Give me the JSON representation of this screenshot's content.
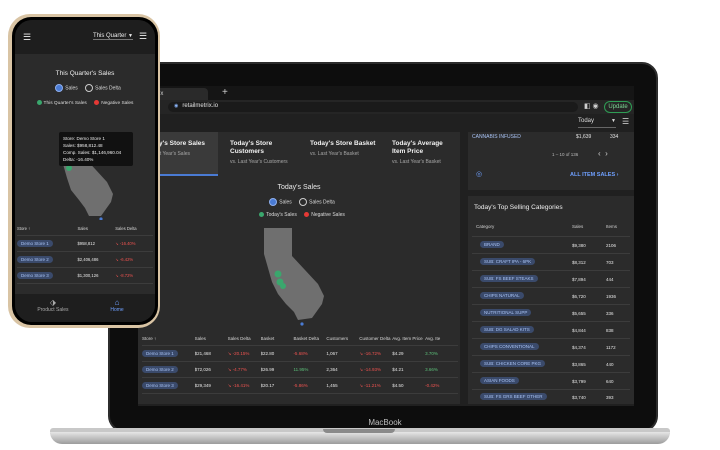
{
  "laptop": {
    "device_label": "MacBook",
    "browser": {
      "tab_label": "etrix",
      "new_tab": "+",
      "url": "retailmetrix.io",
      "update_label": "Update"
    },
    "period_select": "Today",
    "kpis": [
      {
        "title": "Today's Store Sales",
        "sub": "vs. Last Year's Sales"
      },
      {
        "title": "Today's Store Customers",
        "sub": "vs. Last Year's Customers"
      },
      {
        "title": "Today's Store Basket",
        "sub": "vs. Last Year's Basket"
      },
      {
        "title": "Today's Average Item Price",
        "sub": "vs. Last Year's Basket"
      }
    ],
    "chart": {
      "title": "Today's Sales",
      "radio_sales": "Sales",
      "radio_delta": "Sales Delta",
      "legend_pos": "Today's Sales",
      "legend_neg": "Negative Sales"
    },
    "store_table": {
      "headers": [
        "Store ↑",
        "Sales",
        "Sales Delta",
        "Basket",
        "Basket Delta",
        "Customers",
        "Customer Delta",
        "Avg. Item Price",
        "Avg. Ite"
      ],
      "rows": [
        [
          "Demo Store 1",
          "$21,468",
          "↘ -20.15%",
          "$22.80",
          "-5.68%",
          "1,067",
          "↘ -16.72%",
          "$4.29",
          "3.70%"
        ],
        [
          "Demo Store 2",
          "$72,026",
          "↘ -4.77%",
          "$26.99",
          "11.95%",
          "2,364",
          "↘ -14.93%",
          "$4.21",
          "3.66%"
        ],
        [
          "Demo Store 3",
          "$29,349",
          "↘ -16.41%",
          "$20.17",
          "-5.86%",
          "1,455",
          "↘ -11.21%",
          "$4.50",
          "-0.42%"
        ]
      ]
    },
    "top_right": {
      "row_label": "CANNABIS INFUSED",
      "row_sales": "$1,639",
      "row_items": "334",
      "pager": "1 – 10 of 136",
      "all_items_label": "ALL ITEM SALES ›"
    },
    "categories": {
      "title": "Today's Top Selling Categories",
      "headers": [
        "Category",
        "Sales",
        "Items"
      ],
      "rows": [
        {
          "name": "BRAND",
          "sales": "$9,380",
          "items": "2106"
        },
        {
          "name": "SUB: CRAFT IPA - 6PK",
          "sales": "$8,312",
          "items": "703"
        },
        {
          "name": "SUB: FS BEEF STEAKS",
          "sales": "$7,894",
          "items": "444"
        },
        {
          "name": "CHIPS NATURAL",
          "sales": "$6,720",
          "items": "1936"
        },
        {
          "name": "NUTRITIONAL SUPP",
          "sales": "$5,655",
          "items": "336"
        },
        {
          "name": "SUB: DG SALAD KITS",
          "sales": "$4,844",
          "items": "838"
        },
        {
          "name": "CHIPS CONVENTIONAL",
          "sales": "$4,374",
          "items": "1172"
        },
        {
          "name": "SUB: CHICKEN CORE PKG",
          "sales": "$3,865",
          "items": "440"
        },
        {
          "name": "ASIAN FOODS",
          "sales": "$3,799",
          "items": "640"
        },
        {
          "name": "SUB: FS GRS BEEF OTHER",
          "sales": "$3,740",
          "items": "393"
        }
      ]
    }
  },
  "phone": {
    "period_select": "This Quarter",
    "chart_title": "This Quarter's Sales",
    "radio_sales": "Sales",
    "radio_delta": "Sales Delta",
    "legend_pos": "This Quarter's Sales",
    "legend_neg": "Negative Sales",
    "tooltip": {
      "store": "Store: Demo Store 1",
      "sales": "Sales: $958,812.48",
      "comp": "Comp. Sales: $1,146,960.04",
      "delta": "Delta: -16.40%"
    },
    "table": {
      "headers": [
        "Store ↑",
        "Sales",
        "Sales Delta"
      ],
      "rows": [
        [
          "Demo Store 1",
          "$958,812",
          "↘ -16.40%"
        ],
        [
          "Demo Store 2",
          "$2,406,486",
          "↘ -6.42%"
        ],
        [
          "Demo Store 3",
          "$1,300,126",
          "↘ -8.72%"
        ]
      ]
    },
    "nav": {
      "product": "Product Sales",
      "home": "Home"
    }
  },
  "colors": {
    "accent": "#4a7bd4",
    "positive": "#3aa76d",
    "negative": "#e53935",
    "panel": "#2b2b2b"
  }
}
